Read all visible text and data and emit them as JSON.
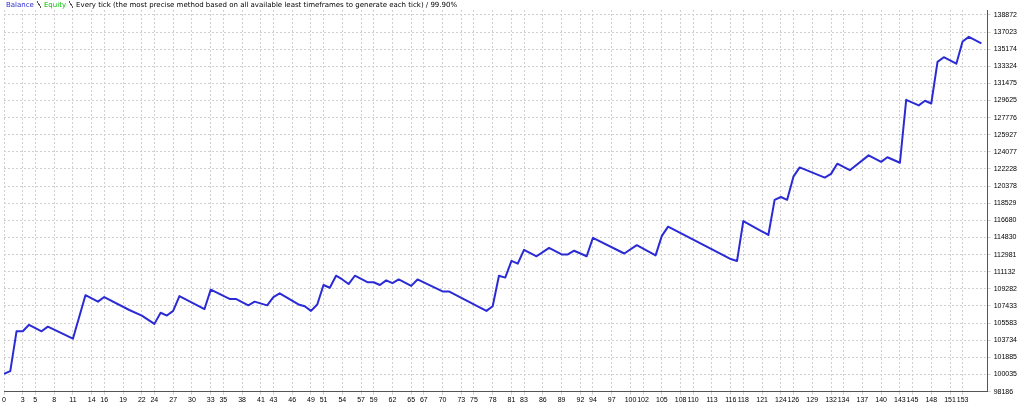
{
  "chart_data": {
    "type": "line",
    "subtitle": "Every tick (the most precise method based on all available least timeframes to generate each tick) / 99.90%",
    "x": [
      0,
      1,
      2,
      3,
      4,
      6,
      7,
      11,
      13,
      15,
      16,
      20,
      22,
      24,
      25,
      26,
      27,
      28,
      32,
      33,
      36,
      37,
      39,
      40,
      42,
      43,
      44,
      47,
      48,
      49,
      50,
      51,
      52,
      53,
      54,
      55,
      56,
      58,
      59,
      60,
      61,
      62,
      63,
      65,
      66,
      70,
      71,
      77,
      78,
      79,
      80,
      81,
      82,
      83,
      85,
      87,
      89,
      90,
      91,
      93,
      94,
      99,
      101,
      104,
      105,
      106,
      116,
      117,
      118,
      122,
      123,
      124,
      125,
      126,
      127,
      131,
      132,
      133,
      135,
      138,
      140,
      141,
      143,
      144,
      146,
      147,
      148,
      149,
      150,
      152,
      153,
      154,
      156
    ],
    "series": [
      {
        "name": "Balance",
        "color": "#2b2bd6",
        "values": [
          100100,
          100400,
          104700,
          104700,
          105400,
          104700,
          105200,
          103900,
          108600,
          107900,
          108400,
          107000,
          106400,
          105500,
          106700,
          106400,
          106900,
          108500,
          107100,
          109200,
          108200,
          108200,
          107500,
          107900,
          107500,
          108400,
          108800,
          107600,
          107400,
          106900,
          107600,
          109700,
          109400,
          110700,
          110300,
          109800,
          110700,
          110000,
          110000,
          109700,
          110200,
          109900,
          110300,
          109600,
          110300,
          109000,
          109000,
          106900,
          107400,
          110700,
          110500,
          112300,
          112000,
          113500,
          112800,
          113700,
          113000,
          113000,
          113400,
          112800,
          114800,
          113100,
          114000,
          112900,
          115000,
          116000,
          112500,
          112300,
          116600,
          115100,
          118900,
          119200,
          118900,
          121400,
          122400,
          121300,
          121700,
          122800,
          122100,
          123700,
          123000,
          123500,
          122900,
          129700,
          129100,
          129600,
          129300,
          133800,
          134300,
          133600,
          136000,
          136500,
          135800
        ]
      },
      {
        "name": "Equity",
        "color": "#00c000",
        "values": [
          null,
          null,
          null,
          null,
          null,
          null,
          null,
          null,
          null,
          null,
          null,
          null,
          null,
          null,
          null,
          null,
          null,
          null,
          null,
          null,
          null,
          null,
          null,
          null,
          null,
          null,
          null,
          null,
          null,
          null,
          null,
          null,
          null,
          null,
          null,
          null,
          null,
          null,
          null,
          null,
          null,
          null,
          null,
          null,
          null,
          null,
          null,
          null,
          null,
          null,
          null,
          null,
          null,
          null,
          null,
          null,
          null,
          null,
          null,
          null,
          null,
          null,
          null,
          null,
          null,
          null,
          null,
          null,
          null,
          null,
          null,
          null,
          null,
          null,
          null,
          null,
          null,
          null,
          null,
          null,
          null,
          null,
          null,
          null,
          null,
          null,
          null,
          null,
          null,
          null,
          null,
          null,
          null
        ]
      }
    ],
    "xlim": [
      0,
      157
    ],
    "xticks": [
      0,
      3,
      5,
      8,
      11,
      14,
      16,
      19,
      22,
      24,
      27,
      30,
      33,
      35,
      38,
      41,
      43,
      46,
      49,
      51,
      54,
      57,
      59,
      62,
      65,
      67,
      70,
      73,
      75,
      78,
      81,
      83,
      86,
      89,
      92,
      94,
      97,
      100,
      102,
      105,
      108,
      110,
      113,
      116,
      118,
      121,
      124,
      126,
      129,
      132,
      134,
      137,
      140,
      143,
      145,
      148,
      151,
      153
    ],
    "ylim": [
      98186,
      139400
    ],
    "yticks": [
      98186,
      100035,
      101885,
      103734,
      105583,
      107433,
      109282,
      111132,
      112981,
      114830,
      116680,
      118529,
      120378,
      122228,
      124077,
      125927,
      127776,
      129625,
      131475,
      133324,
      135174,
      137023,
      138872
    ],
    "grid": true
  }
}
